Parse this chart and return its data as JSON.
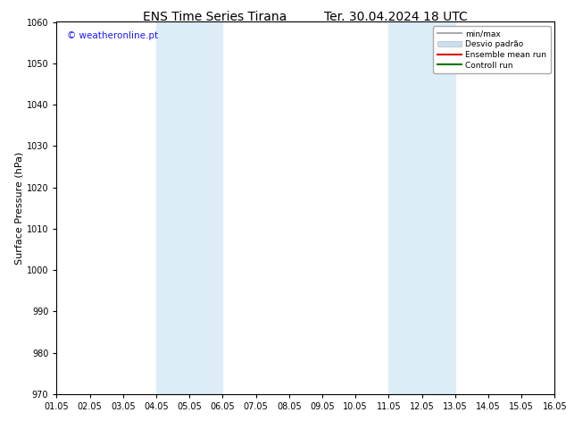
{
  "title_left": "ENS Time Series Tirana",
  "title_right": "Ter. 30.04.2024 18 UTC",
  "ylabel": "Surface Pressure (hPa)",
  "ylim": [
    970,
    1060
  ],
  "yticks": [
    970,
    980,
    990,
    1000,
    1010,
    1020,
    1030,
    1040,
    1050,
    1060
  ],
  "xlim_start": 0,
  "xlim_end": 15,
  "xtick_labels": [
    "01.05",
    "02.05",
    "03.05",
    "04.05",
    "05.05",
    "06.05",
    "07.05",
    "08.05",
    "09.05",
    "10.05",
    "11.05",
    "12.05",
    "13.05",
    "14.05",
    "15.05",
    "16.05"
  ],
  "shaded_regions": [
    {
      "xstart": 3,
      "xend": 5,
      "color": "#ddedf8"
    },
    {
      "xstart": 10,
      "xend": 12,
      "color": "#ddedf8"
    }
  ],
  "watermark_text": "© weatheronline.pt",
  "watermark_color": "#1a1aff",
  "legend_entries": [
    {
      "label": "min/max",
      "color": "#aaaaaa",
      "type": "line",
      "linewidth": 1.5
    },
    {
      "label": "Desvio padrão",
      "color": "#c8dff0",
      "type": "patch"
    },
    {
      "label": "Ensemble mean run",
      "color": "#dd0000",
      "type": "line",
      "linewidth": 1.5
    },
    {
      "label": "Controll run",
      "color": "#007700",
      "type": "line",
      "linewidth": 1.5
    }
  ],
  "background_color": "#ffffff",
  "plot_bg_color": "#ffffff",
  "title_fontsize": 10,
  "tick_fontsize": 7,
  "ylabel_fontsize": 8,
  "watermark_fontsize": 7.5,
  "legend_fontsize": 6.5
}
